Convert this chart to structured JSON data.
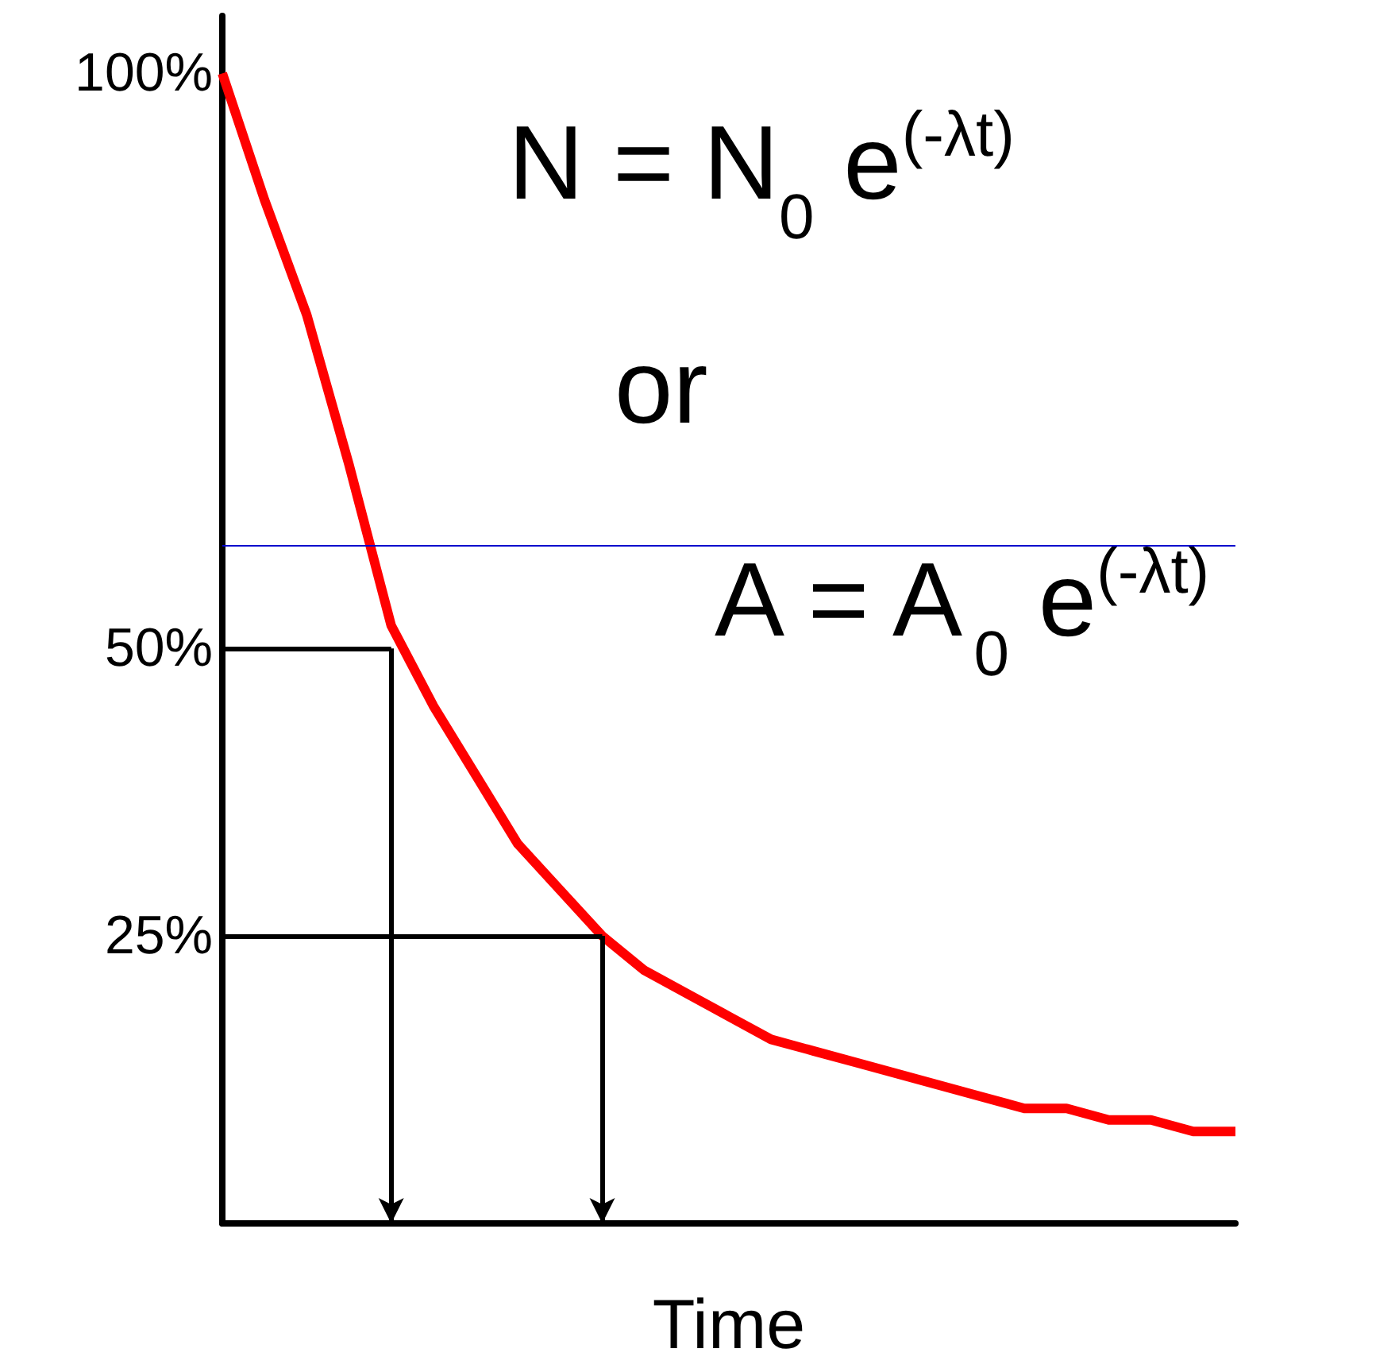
{
  "chart_data": {
    "type": "line",
    "xlabel": "Time",
    "annotations": [
      "N = N$_{0}$ e$^{(-λt)}$",
      "or",
      "A = A$_{0}$ e$^{(-λt)}$"
    ],
    "categories": [
      null,
      null,
      null,
      null,
      null,
      null,
      null,
      null,
      null,
      null,
      null,
      null,
      null,
      null,
      null,
      null,
      null,
      null,
      null,
      null,
      null,
      null,
      null,
      null,
      null
    ],
    "series": [
      {
        "color": "#ff0000",
        "values": [
          100,
          89,
          79,
          66,
          52,
          45,
          39,
          33,
          29,
          25,
          22,
          20,
          18,
          16,
          15,
          14,
          13,
          12,
          11,
          10,
          10,
          9,
          9,
          8,
          8
        ]
      }
    ],
    "ylim": [
      0,
      105
    ],
    "yticks": [
      {
        "value": 25,
        "label": "25%"
      },
      {
        "value": 50,
        "label": "50%"
      },
      {
        "value": 100,
        "label": "100%"
      }
    ],
    "tick_labels": "y",
    "grid": false,
    "marker": "none",
    "ref_lines": [
      {
        "axis": "y",
        "value": 50,
        "color": "#000000"
      },
      {
        "axis": "y",
        "value": 25,
        "color": "#000000"
      },
      {
        "axis": "y",
        "value": 59,
        "color": "#0000cc",
        "line_style": "solid"
      }
    ]
  }
}
